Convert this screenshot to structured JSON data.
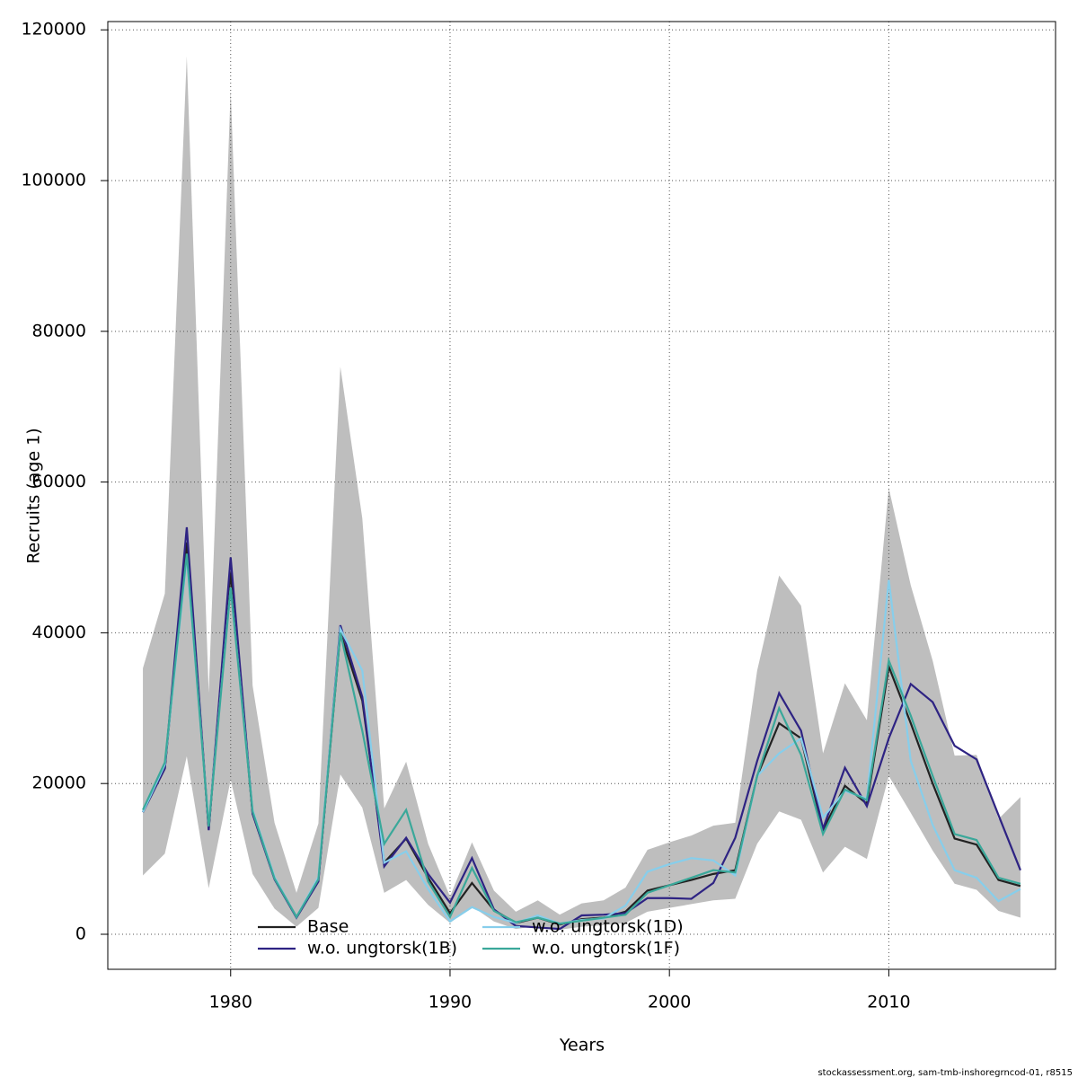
{
  "chart_data": {
    "type": "line",
    "x": [
      1976,
      1977,
      1978,
      1979,
      1980,
      1981,
      1982,
      1983,
      1984,
      1985,
      1986,
      1987,
      1988,
      1989,
      1990,
      1991,
      1992,
      1993,
      1994,
      1995,
      1996,
      1997,
      1998,
      1999,
      2000,
      2001,
      2002,
      2003,
      2004,
      2005,
      2006,
      2007,
      2008,
      2009,
      2010,
      2011,
      2012,
      2013,
      2014,
      2015,
      2016
    ],
    "band": {
      "color": "#bebebe",
      "upper": [
        35300,
        45200,
        116500,
        32000,
        112000,
        33000,
        14800,
        5500,
        14700,
        75300,
        55200,
        16700,
        22900,
        12000,
        5000,
        12200,
        5800,
        3000,
        4500,
        2600,
        4100,
        4500,
        6200,
        11200,
        12200,
        13100,
        14400,
        14800,
        35000,
        47600,
        43600,
        24000,
        33300,
        28400,
        59200,
        46300,
        36300,
        23700,
        23800,
        15300,
        18200
      ],
      "lower": [
        7800,
        10700,
        23600,
        6100,
        20500,
        8000,
        3400,
        1000,
        3500,
        21200,
        16800,
        5500,
        7200,
        3900,
        1500,
        3700,
        1700,
        700,
        1100,
        600,
        1000,
        1200,
        1500,
        3000,
        3500,
        4000,
        4500,
        4700,
        12000,
        16300,
        15200,
        8200,
        11600,
        10000,
        21000,
        16100,
        11100,
        6700,
        5900,
        3100,
        2200
      ]
    },
    "series": [
      {
        "name": "Base",
        "color": "#222222",
        "values": [
          16200,
          22000,
          52000,
          14000,
          48000,
          16000,
          7500,
          2300,
          7200,
          40000,
          31000,
          9500,
          12700,
          7500,
          2800,
          6800,
          3200,
          1500,
          2200,
          1300,
          2000,
          2200,
          3000,
          5800,
          6500,
          7200,
          8000,
          8500,
          21000,
          28000,
          26000,
          13800,
          19700,
          17300,
          35500,
          28000,
          20000,
          12700,
          11900,
          7200,
          6400
        ]
      },
      {
        "name": "w.o. ungtorsk(1B)",
        "color": "#2e2383",
        "values": [
          16200,
          22000,
          54000,
          13800,
          50000,
          16000,
          7300,
          2200,
          7000,
          41000,
          31500,
          9000,
          12800,
          8000,
          4200,
          10100,
          3300,
          1100,
          900,
          700,
          2500,
          2600,
          2800,
          4800,
          4800,
          4700,
          6800,
          12800,
          23000,
          32000,
          27000,
          14000,
          22100,
          17000,
          26000,
          33200,
          30800,
          25000,
          23200,
          15800,
          8500
        ]
      },
      {
        "name": "w.o. ungtorsk(1D)",
        "color": "#87ceeb",
        "values": [
          16200,
          22500,
          50000,
          14500,
          46000,
          16500,
          7600,
          2300,
          7600,
          40500,
          35000,
          9500,
          11000,
          6000,
          1700,
          3600,
          2300,
          1500,
          2500,
          1400,
          1900,
          2100,
          3800,
          8300,
          9300,
          10100,
          9800,
          7800,
          21000,
          24000,
          26000,
          15500,
          19000,
          18000,
          47000,
          23000,
          14500,
          8500,
          7500,
          4400,
          6000
        ]
      },
      {
        "name": "w.o. ungtorsk(1F)",
        "color": "#3aa89a",
        "values": [
          16500,
          22800,
          50500,
          14300,
          46000,
          16300,
          7400,
          2300,
          7300,
          40000,
          27000,
          12000,
          16500,
          7000,
          2300,
          8800,
          3100,
          1600,
          2200,
          1400,
          1800,
          2200,
          2600,
          5500,
          6500,
          7500,
          8500,
          8200,
          21000,
          30000,
          23800,
          13300,
          19200,
          17800,
          36300,
          29000,
          21000,
          13300,
          12500,
          7500,
          6700
        ]
      }
    ],
    "x_label": "Years",
    "y_label": "Recruits (age 1)",
    "xlim": [
      1974.4,
      2017.6
    ],
    "ylim": [
      -4650,
      121100
    ],
    "xticks": [
      1980,
      1990,
      2000,
      2010
    ],
    "yticks": [
      0,
      20000,
      40000,
      60000,
      80000,
      100000,
      120000
    ],
    "grid": true,
    "legend": "bottom",
    "footnote": "stockassessment.org, sam-tmb-inshoregrncod-01, r8515"
  }
}
